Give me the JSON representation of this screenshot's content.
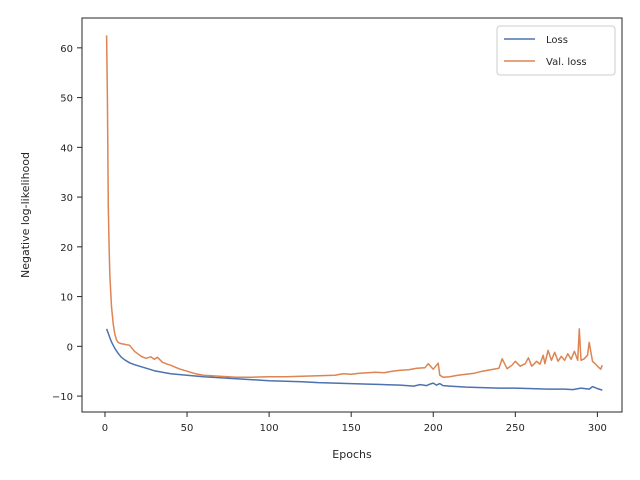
{
  "chart_data": {
    "type": "line",
    "xlabel": "Epochs",
    "ylabel": "Negative log-likelihood",
    "xlim": [
      -14,
      315
    ],
    "ylim": [
      -13.2,
      66
    ],
    "xticks": [
      0,
      50,
      100,
      150,
      200,
      250,
      300
    ],
    "yticks": [
      -10,
      0,
      10,
      20,
      30,
      40,
      50,
      60
    ],
    "grid": false,
    "legend_position": "top-right",
    "series": [
      {
        "name": "Loss",
        "color": "#4c72b0",
        "x": [
          1,
          2,
          3,
          4,
          5,
          6,
          8,
          10,
          12,
          15,
          18,
          22,
          26,
          30,
          35,
          40,
          50,
          60,
          70,
          80,
          90,
          100,
          110,
          120,
          130,
          140,
          150,
          160,
          170,
          180,
          188,
          192,
          196,
          198,
          200,
          202,
          204,
          206,
          210,
          215,
          220,
          230,
          240,
          250,
          260,
          270,
          280,
          285,
          290,
          295,
          297,
          300,
          303
        ],
        "y": [
          3.5,
          2.6,
          1.7,
          0.9,
          0.2,
          -0.4,
          -1.4,
          -2.2,
          -2.7,
          -3.3,
          -3.7,
          -4.1,
          -4.5,
          -4.9,
          -5.2,
          -5.5,
          -5.8,
          -6.1,
          -6.3,
          -6.5,
          -6.7,
          -6.9,
          -7.0,
          -7.1,
          -7.3,
          -7.4,
          -7.5,
          -7.6,
          -7.7,
          -7.8,
          -8.0,
          -7.7,
          -7.9,
          -7.6,
          -7.4,
          -7.8,
          -7.5,
          -7.9,
          -8.0,
          -8.1,
          -8.2,
          -8.3,
          -8.4,
          -8.4,
          -8.5,
          -8.6,
          -8.6,
          -8.7,
          -8.4,
          -8.6,
          -8.1,
          -8.5,
          -8.8
        ]
      },
      {
        "name": "Val. loss",
        "color": "#dd8452",
        "x": [
          1,
          1.5,
          2,
          2.5,
          3,
          4,
          5,
          6,
          7,
          8,
          10,
          12,
          15,
          18,
          20,
          22,
          25,
          28,
          30,
          32,
          35,
          38,
          40,
          45,
          50,
          55,
          60,
          70,
          80,
          90,
          100,
          110,
          120,
          130,
          140,
          145,
          150,
          155,
          160,
          165,
          170,
          175,
          180,
          185,
          190,
          195,
          197,
          200,
          203,
          204,
          206,
          210,
          215,
          220,
          225,
          230,
          235,
          240,
          242,
          245,
          248,
          250,
          253,
          256,
          258,
          260,
          263,
          265,
          267,
          268,
          270,
          272,
          274,
          276,
          278,
          280,
          282,
          284,
          286,
          288,
          289,
          290,
          292,
          294,
          295,
          297,
          299,
          300,
          302,
          303
        ],
        "y": [
          62.5,
          50,
          28,
          20,
          14,
          8,
          4.5,
          2.5,
          1.3,
          0.8,
          0.5,
          0.4,
          0.2,
          -1.0,
          -1.5,
          -2.0,
          -2.4,
          -2.1,
          -2.6,
          -2.2,
          -3.2,
          -3.6,
          -3.8,
          -4.5,
          -5.0,
          -5.5,
          -5.8,
          -6.0,
          -6.2,
          -6.2,
          -6.1,
          -6.1,
          -6.0,
          -5.9,
          -5.8,
          -5.5,
          -5.6,
          -5.4,
          -5.3,
          -5.2,
          -5.3,
          -5.0,
          -4.8,
          -4.7,
          -4.4,
          -4.3,
          -3.5,
          -4.6,
          -3.4,
          -5.8,
          -6.2,
          -6.1,
          -5.8,
          -5.6,
          -5.4,
          -5.0,
          -4.7,
          -4.4,
          -2.5,
          -4.5,
          -3.8,
          -3.0,
          -4.0,
          -3.5,
          -2.3,
          -4.0,
          -3.0,
          -3.6,
          -1.8,
          -3.5,
          -0.8,
          -2.8,
          -1.2,
          -3.0,
          -2.0,
          -2.8,
          -1.5,
          -2.6,
          -1.0,
          -2.8,
          3.5,
          -2.8,
          -2.5,
          -1.8,
          0.8,
          -3.0,
          -3.6,
          -4.0,
          -4.6,
          -3.8
        ]
      }
    ]
  }
}
